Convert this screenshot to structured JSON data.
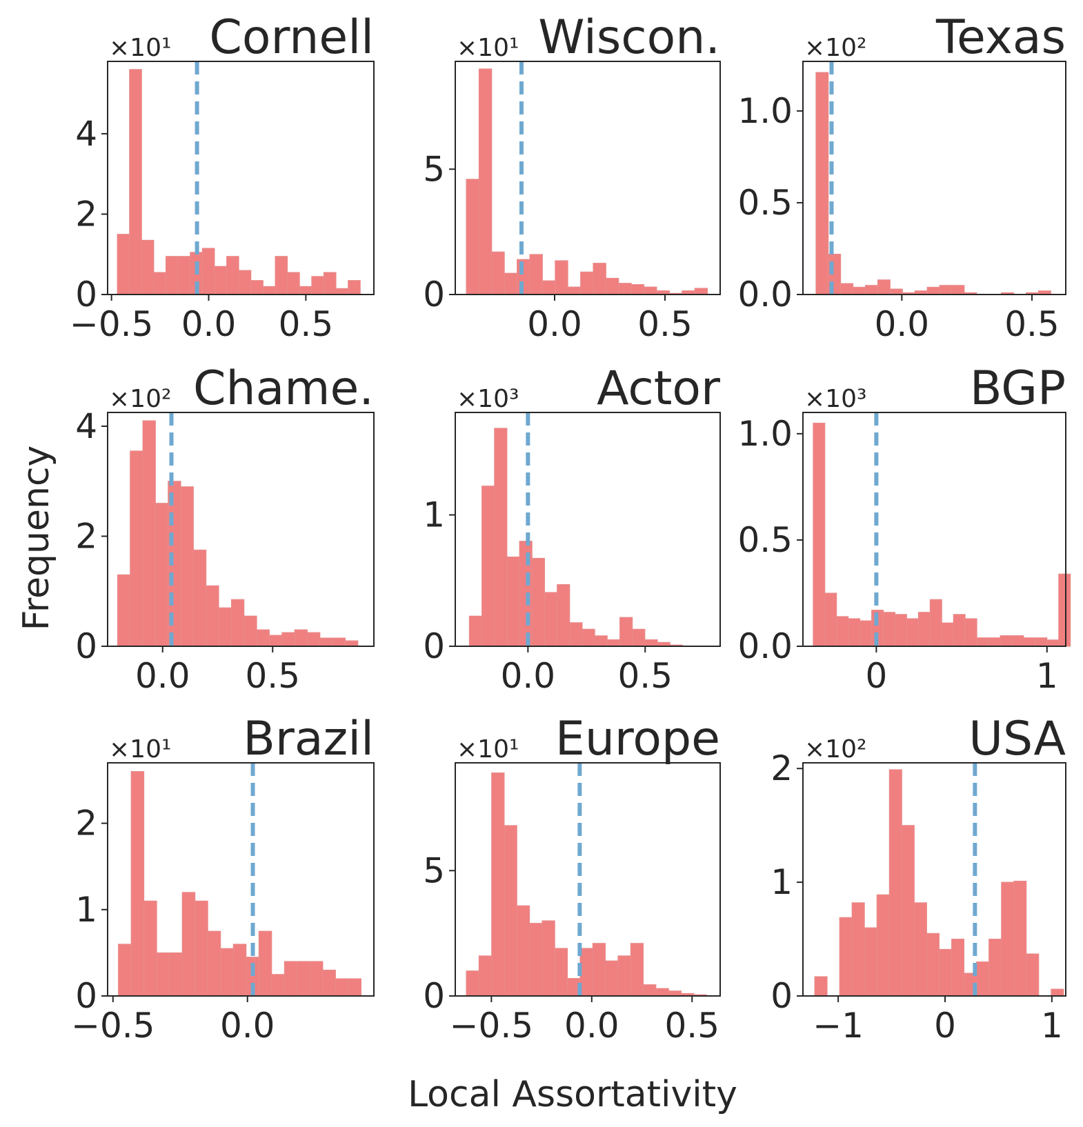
{
  "figure": {
    "xlabel": "Local Assortativity",
    "ylabel": "Frequency",
    "colors": {
      "bars": "#F08080",
      "mean_line": "#6FA8D0",
      "text": "#262626"
    }
  },
  "chart_data": [
    {
      "type": "bar",
      "title": "Cornell",
      "exponent_label": "×10¹",
      "xlim": [
        -0.52,
        0.85
      ],
      "ylim": [
        0,
        5.8
      ],
      "bin_start": -0.47,
      "bin_width": 0.0625,
      "values": [
        1.5,
        5.6,
        1.35,
        0.55,
        0.95,
        0.95,
        1.05,
        1.15,
        0.7,
        0.95,
        0.6,
        0.35,
        0.2,
        0.95,
        0.55,
        0.2,
        0.45,
        0.55,
        0.15,
        0.35
      ],
      "mean": -0.06,
      "xticks": [
        -0.5,
        0.0,
        0.5
      ],
      "xtick_labels": [
        "−0.5",
        "0.0",
        "0.5"
      ],
      "yticks": [
        0,
        2,
        4
      ],
      "ytick_labels": [
        "0",
        "2",
        "4"
      ]
    },
    {
      "type": "bar",
      "title": "Wiscon.",
      "exponent_label": "×10¹",
      "xlim": [
        -0.45,
        0.75
      ],
      "ylim": [
        0,
        9.3
      ],
      "bin_start": -0.4,
      "bin_width": 0.0575,
      "values": [
        4.6,
        9.0,
        1.7,
        0.85,
        1.4,
        1.6,
        0.55,
        1.35,
        0.3,
        0.9,
        1.25,
        0.65,
        0.45,
        0.4,
        0.3,
        0.15,
        0.05,
        0.15,
        0.25
      ],
      "mean": -0.15,
      "xticks": [
        0.0,
        0.5
      ],
      "xtick_labels": [
        "0.0",
        "0.5"
      ],
      "yticks": [
        0,
        5
      ],
      "ytick_labels": [
        "0",
        "5"
      ]
    },
    {
      "type": "bar",
      "title": "Texas",
      "exponent_label": "×10²",
      "xlim": [
        -0.38,
        0.63
      ],
      "ylim": [
        0,
        1.27
      ],
      "bin_start": -0.33,
      "bin_width": 0.0475,
      "values": [
        1.21,
        0.22,
        0.06,
        0.04,
        0.05,
        0.08,
        0.03,
        0.01,
        0.02,
        0.04,
        0.05,
        0.05,
        0.01,
        0.0,
        0.0,
        0.01,
        0.0,
        0.01,
        0.02
      ],
      "mean": -0.27,
      "xticks": [
        0.0,
        0.5
      ],
      "xtick_labels": [
        "0.0",
        "0.5"
      ],
      "yticks": [
        0,
        0.5,
        1.0
      ],
      "ytick_labels": [
        "0.0",
        "0.5",
        "1.0"
      ]
    },
    {
      "type": "bar",
      "title": "Chame.",
      "exponent_label": "×10²",
      "xlim": [
        -0.25,
        0.96
      ],
      "ylim": [
        0,
        4.25
      ],
      "bin_start": -0.205,
      "bin_width": 0.0575,
      "values": [
        1.3,
        3.55,
        4.1,
        2.6,
        3.0,
        2.9,
        1.75,
        1.1,
        0.7,
        0.85,
        0.55,
        0.3,
        0.2,
        0.25,
        0.3,
        0.25,
        0.15,
        0.15,
        0.1
      ],
      "mean": 0.04,
      "xticks": [
        0.0,
        0.5
      ],
      "xtick_labels": [
        "0.0",
        "0.5"
      ],
      "yticks": [
        0,
        2,
        4
      ],
      "ytick_labels": [
        "0",
        "2",
        "4"
      ]
    },
    {
      "type": "bar",
      "title": "Actor",
      "exponent_label": "×10³",
      "xlim": [
        -0.31,
        0.82
      ],
      "ylim": [
        0,
        1.78
      ],
      "bin_start": -0.25,
      "bin_width": 0.0535,
      "values": [
        0.23,
        1.22,
        1.66,
        0.68,
        0.8,
        0.67,
        0.41,
        0.47,
        0.18,
        0.13,
        0.08,
        0.05,
        0.22,
        0.13,
        0.05,
        0.03,
        0.01
      ],
      "mean": 0.0,
      "xticks": [
        0.0,
        0.5
      ],
      "xtick_labels": [
        "0.0",
        "0.5"
      ],
      "yticks": [
        0,
        1
      ],
      "ytick_labels": [
        "0",
        "1"
      ]
    },
    {
      "type": "bar",
      "title": "BGP",
      "exponent_label": "×10³",
      "xlim": [
        -0.43,
        1.11
      ],
      "ylim": [
        0,
        1.1
      ],
      "bin_start": -0.37,
      "bin_width": 0.0685,
      "values": [
        1.05,
        0.25,
        0.14,
        0.13,
        0.12,
        0.17,
        0.16,
        0.15,
        0.13,
        0.16,
        0.22,
        0.11,
        0.15,
        0.13,
        0.04,
        0.04,
        0.05,
        0.05,
        0.04,
        0.04,
        0.03,
        0.34
      ],
      "mean": 0.0,
      "xticks": [
        0,
        1
      ],
      "xtick_labels": [
        "0",
        "1"
      ],
      "yticks": [
        0,
        0.5,
        1.0
      ],
      "ytick_labels": [
        "0.0",
        "0.5",
        "1.0"
      ]
    },
    {
      "type": "bar",
      "title": "Brazil",
      "exponent_label": "×10¹",
      "xlim": [
        -0.52,
        0.47
      ],
      "ylim": [
        0,
        2.7
      ],
      "bin_start": -0.48,
      "bin_width": 0.0475,
      "values": [
        0.6,
        2.6,
        1.1,
        0.5,
        0.5,
        1.2,
        1.1,
        0.75,
        0.55,
        0.6,
        0.45,
        0.75,
        0.25,
        0.4,
        0.4,
        0.4,
        0.3,
        0.2,
        0.2
      ],
      "mean": 0.02,
      "xticks": [
        -0.5,
        0.0
      ],
      "xtick_labels": [
        "−0.5",
        "0.0"
      ],
      "yticks": [
        0,
        1,
        2
      ],
      "ytick_labels": [
        "0",
        "1",
        "2"
      ]
    },
    {
      "type": "bar",
      "title": "Europe",
      "exponent_label": "×10¹",
      "xlim": [
        -0.68,
        0.64
      ],
      "ylim": [
        0,
        9.3
      ],
      "bin_start": -0.625,
      "bin_width": 0.063,
      "values": [
        1.0,
        1.6,
        8.9,
        6.8,
        3.6,
        2.9,
        3.0,
        1.9,
        0.7,
        1.9,
        2.1,
        1.4,
        1.6,
        2.1,
        0.45,
        0.3,
        0.2,
        0.1,
        0.05
      ],
      "mean": -0.06,
      "xticks": [
        -0.5,
        0.0,
        0.5
      ],
      "xtick_labels": [
        "−0.5",
        "0.0",
        "0.5"
      ],
      "yticks": [
        0,
        5
      ],
      "ytick_labels": [
        "0",
        "5"
      ]
    },
    {
      "type": "bar",
      "title": "USA",
      "exponent_label": "×10²",
      "xlim": [
        -1.33,
        1.13
      ],
      "ylim": [
        0,
        2.05
      ],
      "bin_start": -1.22,
      "bin_width": 0.1165,
      "values": [
        0.17,
        0.0,
        0.69,
        0.82,
        0.6,
        0.89,
        1.99,
        1.5,
        0.82,
        0.55,
        0.41,
        0.5,
        0.2,
        0.3,
        0.5,
        1.0,
        1.01,
        0.37,
        0.0,
        0.06
      ],
      "mean": 0.28,
      "xticks": [
        -1,
        0,
        1
      ],
      "xtick_labels": [
        "−1",
        "0",
        "1"
      ],
      "yticks": [
        0,
        1,
        2
      ],
      "ytick_labels": [
        "0",
        "1",
        "2"
      ]
    }
  ]
}
